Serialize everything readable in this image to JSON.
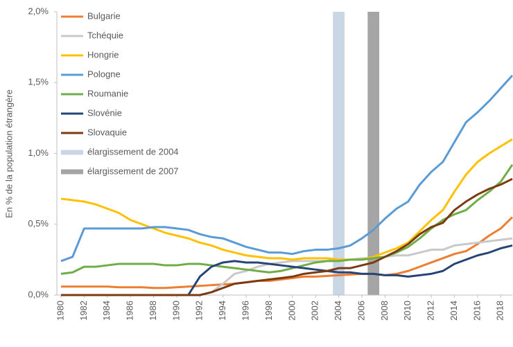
{
  "chart_data": {
    "type": "line",
    "y_label": "En % de la population étrangère",
    "x": [
      1980,
      1981,
      1982,
      1983,
      1984,
      1985,
      1986,
      1987,
      1988,
      1989,
      1990,
      1991,
      1992,
      1993,
      1994,
      1995,
      1996,
      1997,
      1998,
      1999,
      2000,
      2001,
      2002,
      2003,
      2004,
      2005,
      2006,
      2007,
      2008,
      2009,
      2010,
      2011,
      2012,
      2013,
      2014,
      2015,
      2016,
      2017,
      2018,
      2019
    ],
    "xlim": [
      1980,
      2019
    ],
    "xticks": [
      1980,
      1982,
      1984,
      1986,
      1988,
      1990,
      1992,
      1994,
      1996,
      1998,
      2000,
      2002,
      2004,
      2006,
      2008,
      2010,
      2012,
      2014,
      2016,
      2018
    ],
    "ylim": [
      0,
      2.0
    ],
    "yticks": [
      {
        "value": 0,
        "label": "0,0%"
      },
      {
        "value": 0.5,
        "label": "0,5%"
      },
      {
        "value": 1.0,
        "label": "1,0%"
      },
      {
        "value": 1.5,
        "label": "1,5%"
      },
      {
        "value": 2.0,
        "label": "2,0%"
      }
    ],
    "legend": "top-left",
    "series": [
      {
        "name": "Bulgarie",
        "color": "#ed7d31",
        "values": [
          0.06,
          0.06,
          0.06,
          0.06,
          0.06,
          0.055,
          0.055,
          0.055,
          0.05,
          0.05,
          0.055,
          0.06,
          0.065,
          0.07,
          0.075,
          0.08,
          0.09,
          0.1,
          0.1,
          0.11,
          0.12,
          0.13,
          0.13,
          0.135,
          0.14,
          0.145,
          0.15,
          0.15,
          0.14,
          0.15,
          0.17,
          0.2,
          0.23,
          0.26,
          0.29,
          0.31,
          0.36,
          0.42,
          0.47,
          0.55
        ]
      },
      {
        "name": "Tchéquie",
        "color": "#c9c9c9",
        "values": [
          0,
          0,
          0,
          0,
          0,
          0,
          0,
          0,
          0,
          0,
          0,
          0,
          0,
          0.02,
          0.08,
          0.15,
          0.17,
          0.2,
          0.22,
          0.23,
          0.24,
          0.24,
          0.24,
          0.24,
          0.25,
          0.25,
          0.26,
          0.26,
          0.27,
          0.28,
          0.28,
          0.3,
          0.32,
          0.32,
          0.35,
          0.36,
          0.37,
          0.38,
          0.39,
          0.4
        ]
      },
      {
        "name": "Hongrie",
        "color": "#ffc000",
        "values": [
          0.68,
          0.67,
          0.66,
          0.64,
          0.61,
          0.58,
          0.53,
          0.5,
          0.47,
          0.44,
          0.42,
          0.4,
          0.37,
          0.35,
          0.32,
          0.3,
          0.28,
          0.27,
          0.26,
          0.26,
          0.25,
          0.26,
          0.26,
          0.26,
          0.25,
          0.25,
          0.25,
          0.27,
          0.3,
          0.33,
          0.37,
          0.45,
          0.53,
          0.6,
          0.73,
          0.85,
          0.94,
          1.0,
          1.05,
          1.1
        ]
      },
      {
        "name": "Pologne",
        "color": "#5b9bd5",
        "values": [
          0.24,
          0.27,
          0.47,
          0.47,
          0.47,
          0.47,
          0.47,
          0.47,
          0.48,
          0.48,
          0.47,
          0.46,
          0.43,
          0.41,
          0.4,
          0.37,
          0.34,
          0.32,
          0.3,
          0.3,
          0.29,
          0.31,
          0.32,
          0.32,
          0.33,
          0.35,
          0.4,
          0.46,
          0.54,
          0.61,
          0.66,
          0.78,
          0.87,
          0.94,
          1.08,
          1.22,
          1.29,
          1.37,
          1.46,
          1.55
        ]
      },
      {
        "name": "Roumanie",
        "color": "#70ad47",
        "values": [
          0.15,
          0.16,
          0.2,
          0.2,
          0.21,
          0.22,
          0.22,
          0.22,
          0.22,
          0.21,
          0.21,
          0.22,
          0.22,
          0.21,
          0.2,
          0.19,
          0.18,
          0.17,
          0.16,
          0.17,
          0.19,
          0.21,
          0.23,
          0.24,
          0.24,
          0.25,
          0.25,
          0.26,
          0.27,
          0.3,
          0.34,
          0.4,
          0.47,
          0.53,
          0.57,
          0.6,
          0.67,
          0.73,
          0.8,
          0.92
        ]
      },
      {
        "name": "Slovénie",
        "color": "#264478",
        "values": [
          0,
          0,
          0,
          0,
          0,
          0,
          0,
          0,
          0,
          0,
          0,
          0,
          0.13,
          0.2,
          0.23,
          0.24,
          0.23,
          0.23,
          0.22,
          0.21,
          0.2,
          0.19,
          0.18,
          0.17,
          0.16,
          0.16,
          0.15,
          0.15,
          0.14,
          0.14,
          0.13,
          0.14,
          0.15,
          0.17,
          0.22,
          0.25,
          0.28,
          0.3,
          0.33,
          0.35
        ]
      },
      {
        "name": "Slovaquie",
        "color": "#7b3a12",
        "values": [
          0,
          0,
          0,
          0,
          0,
          0,
          0,
          0,
          0,
          0,
          0,
          0,
          0,
          0.02,
          0.05,
          0.08,
          0.09,
          0.1,
          0.11,
          0.12,
          0.13,
          0.15,
          0.16,
          0.17,
          0.19,
          0.19,
          0.21,
          0.23,
          0.27,
          0.31,
          0.36,
          0.43,
          0.48,
          0.51,
          0.6,
          0.66,
          0.71,
          0.75,
          0.78,
          0.82
        ]
      }
    ],
    "bands": [
      {
        "name": "élargissement de 2004",
        "color": "#c9d6e3",
        "x": 2004
      },
      {
        "name": "élargissement de 2007",
        "color": "#a5a5a5",
        "x": 2007
      }
    ]
  }
}
